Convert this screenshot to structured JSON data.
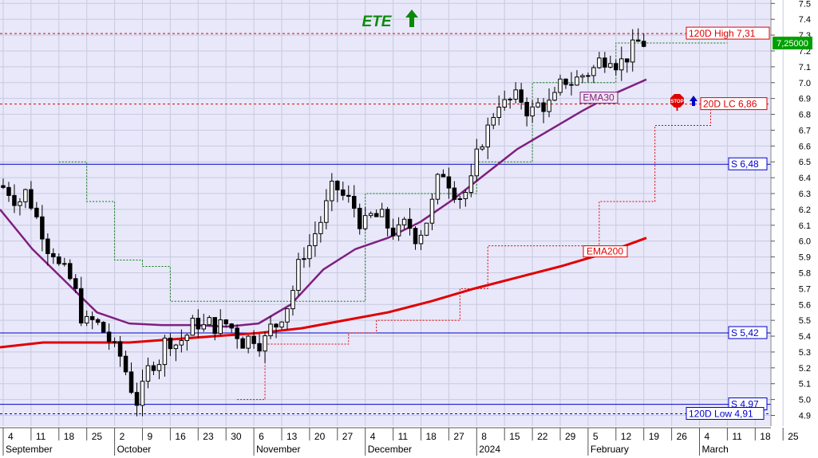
{
  "chart_data": {
    "type": "candlestick",
    "title": "ETE",
    "trend_arrow": "up",
    "colors": {
      "plot_bg": "#e8e8fa",
      "ema30": "#7f1f7f",
      "ema200": "#e00000",
      "support": "#0000cc",
      "resistance": "#e00000",
      "title": "#0a8a0a",
      "candle": "#000000"
    },
    "y_axis": {
      "min": 4.85,
      "max": 7.55,
      "ticks": [
        "4.9",
        "5.0",
        "5.1",
        "5.2",
        "5.3",
        "5.4",
        "5.5",
        "5.6",
        "5.7",
        "5.8",
        "5.9",
        "6.0",
        "6.1",
        "6.2",
        "6.3",
        "6.4",
        "6.5",
        "6.6",
        "6.7",
        "6.8",
        "6.9",
        "7.0",
        "7.1",
        "7.2",
        "7.3",
        "7.4",
        "7.5"
      ]
    },
    "x_axis": {
      "day_labels": [
        "4",
        "11",
        "18",
        "25",
        "2",
        "9",
        "16",
        "23",
        "30",
        "6",
        "13",
        "20",
        "27",
        "4",
        "11",
        "18",
        "27",
        "8",
        "15",
        "22",
        "29",
        "5",
        "12",
        "19",
        "26",
        "4",
        "11",
        "18",
        "25"
      ],
      "months": [
        {
          "label": "September",
          "index": 0
        },
        {
          "label": "October",
          "index": 4
        },
        {
          "label": "November",
          "index": 9
        },
        {
          "label": "December",
          "index": 13
        },
        {
          "label": "2024",
          "index": 17
        },
        {
          "label": "February",
          "index": 21
        },
        {
          "label": "March",
          "index": 25
        }
      ]
    },
    "horizontal_lines": [
      {
        "label": "120D High 7,31",
        "value": 7.31,
        "style": "dashed",
        "color": "#e00000"
      },
      {
        "label": "20D LC 6,86",
        "value": 6.865,
        "style": "dashed",
        "color": "#e00000"
      },
      {
        "label": "S 6,48",
        "value": 6.485,
        "style": "solid",
        "color": "#0000cc"
      },
      {
        "label": "S 5,42",
        "value": 5.42,
        "style": "solid",
        "color": "#0000cc"
      },
      {
        "label": "S 4,97",
        "value": 4.97,
        "style": "solid",
        "color": "#0000cc"
      },
      {
        "label": "120D Low 4,91",
        "value": 4.91,
        "style": "dashed",
        "color": "#0000cc"
      }
    ],
    "last_price_label": "7,25000",
    "last_price": 7.25,
    "series_labels": {
      "ema30": "EMA30",
      "ema200": "EMA200"
    },
    "weekly_close": [
      6.3,
      5.95,
      5.55,
      5.38,
      5.0,
      5.35,
      5.45,
      5.45,
      5.38,
      5.48,
      5.95,
      6.3,
      6.15,
      6.1,
      6.05,
      6.45,
      6.35,
      6.9,
      6.85,
      6.88,
      7.05,
      7.2,
      7.25,
      7.25
    ],
    "ema30": [
      6.2,
      5.95,
      5.75,
      5.55,
      5.48,
      5.47,
      5.47,
      5.46,
      5.48,
      5.6,
      5.82,
      5.95,
      6.02,
      6.12,
      6.26,
      6.42,
      6.58,
      6.7,
      6.82,
      6.93,
      7.02
    ],
    "ema200": [
      5.33,
      5.36,
      5.36,
      5.36,
      5.38,
      5.4,
      5.42,
      5.45,
      5.5,
      5.55,
      5.62,
      5.7,
      5.77,
      5.84,
      5.92,
      6.02
    ],
    "resistance_line": [
      6.5,
      6.25,
      5.88,
      5.84,
      5.62,
      5.62,
      5.62,
      5.62,
      5.62,
      5.62,
      5.62,
      6.3,
      6.3,
      6.3,
      6.3,
      6.5,
      6.5,
      7.0,
      7.0,
      7.0,
      7.25,
      7.25,
      7.25,
      7.25
    ],
    "stop_line": [
      5.0,
      5.35,
      5.35,
      5.35,
      5.42,
      5.5,
      5.5,
      5.5,
      5.7,
      5.97,
      5.97,
      5.97,
      5.97,
      6.25,
      6.25,
      6.73,
      6.73,
      6.86,
      6.86
    ]
  }
}
